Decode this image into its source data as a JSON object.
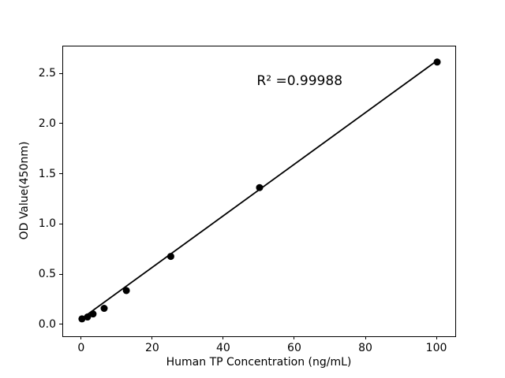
{
  "chart_data": {
    "type": "scatter",
    "title": "",
    "xlabel": "Human TP Concentration (ng/mL)",
    "ylabel": "OD Value(450nm)",
    "annotation": {
      "text": "R² =0.99988",
      "x": 61.5,
      "y": 2.42
    },
    "xlim": [
      -5.3,
      105.1
    ],
    "ylim": [
      -0.11,
      2.775
    ],
    "grid": false,
    "legend": "none",
    "marker_color": "#000000",
    "line_color": "#000000",
    "x_ticks": [
      {
        "v": 0,
        "label": "0"
      },
      {
        "v": 20,
        "label": "20"
      },
      {
        "v": 40,
        "label": "40"
      },
      {
        "v": 60,
        "label": "60"
      },
      {
        "v": 80,
        "label": "80"
      },
      {
        "v": 100,
        "label": "100"
      }
    ],
    "y_ticks": [
      {
        "v": 0.0,
        "label": "0.0"
      },
      {
        "v": 0.5,
        "label": "0.5"
      },
      {
        "v": 1.0,
        "label": "1.0"
      },
      {
        "v": 1.5,
        "label": "1.5"
      },
      {
        "v": 2.0,
        "label": "2.0"
      },
      {
        "v": 2.5,
        "label": "2.5"
      }
    ],
    "points": [
      {
        "x": 0,
        "y": 0.063
      },
      {
        "x": 1.5625,
        "y": 0.082
      },
      {
        "x": 3.125,
        "y": 0.112
      },
      {
        "x": 6.25,
        "y": 0.168
      },
      {
        "x": 12.5,
        "y": 0.345
      },
      {
        "x": 25,
        "y": 0.685
      },
      {
        "x": 50,
        "y": 1.37
      },
      {
        "x": 100,
        "y": 2.62
      }
    ],
    "fit_line": {
      "from": {
        "x": 0,
        "y": 0.068
      },
      "to": {
        "x": 100,
        "y": 2.635
      }
    }
  }
}
